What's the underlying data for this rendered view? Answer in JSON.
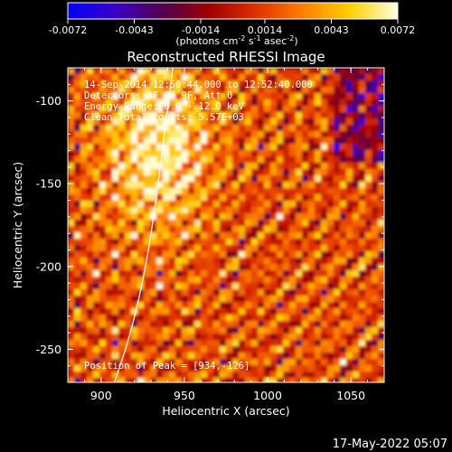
{
  "chart_data": {
    "type": "heatmap",
    "title": "Reconstructed RHESSI Image",
    "xlabel": "Heliocentric X (arcsec)",
    "ylabel": "Heliocentric Y (arcsec)",
    "xlim": [
      880,
      1070
    ],
    "ylim": [
      -270,
      -80
    ],
    "x_ticks": [
      "900",
      "950",
      "1000",
      "1050"
    ],
    "x_tick_values": [
      900,
      950,
      1000,
      1050
    ],
    "y_ticks": [
      "-100",
      "-150",
      "-200",
      "-250"
    ],
    "y_tick_values": [
      -100,
      -150,
      -200,
      -250
    ],
    "colorbar": {
      "range": [
        -0.0072,
        0.0072
      ],
      "tick_labels": [
        "-0.0072",
        "-0.0043",
        "-0.0014",
        "0.0014",
        "0.0043",
        "0.0072"
      ],
      "tick_values": [
        -0.0072,
        -0.0043,
        -0.0014,
        0.0014,
        0.0043,
        0.0072
      ],
      "units_prefix": "(photons cm",
      "units_exp1": "-2",
      "units_mid1": " s",
      "units_exp2": "-1",
      "units_mid2": " asec",
      "units_exp3": "-2",
      "units_suffix": ")",
      "colormap": [
        "#0000ff",
        "#3c00c8",
        "#500050",
        "#a00000",
        "#e03000",
        "#ff8000",
        "#ffd000",
        "#ffffe0"
      ]
    },
    "annotations": {
      "time_line": "14-Sep-2014 12:50:44.000 to 12:52:40.000",
      "detectors_line": "Detectors: 3F 8F 9F, Att 0",
      "energy_line": "Energy Range: 6.0 - 12.0 keV",
      "clean_line": "Clean     Total counts: 5.57E+03",
      "peak_line": "Position of Peak = [934,-126]"
    },
    "peak": {
      "x": 934,
      "y": -126
    },
    "limb_curve": [
      {
        "x": 908,
        "y": -270
      },
      {
        "x": 918,
        "y": -240
      },
      {
        "x": 927,
        "y": -200
      },
      {
        "x": 933,
        "y": -160
      },
      {
        "x": 938,
        "y": -120
      },
      {
        "x": 943,
        "y": -80
      }
    ]
  },
  "footer": {
    "date": "17-May-2022 05:07"
  }
}
